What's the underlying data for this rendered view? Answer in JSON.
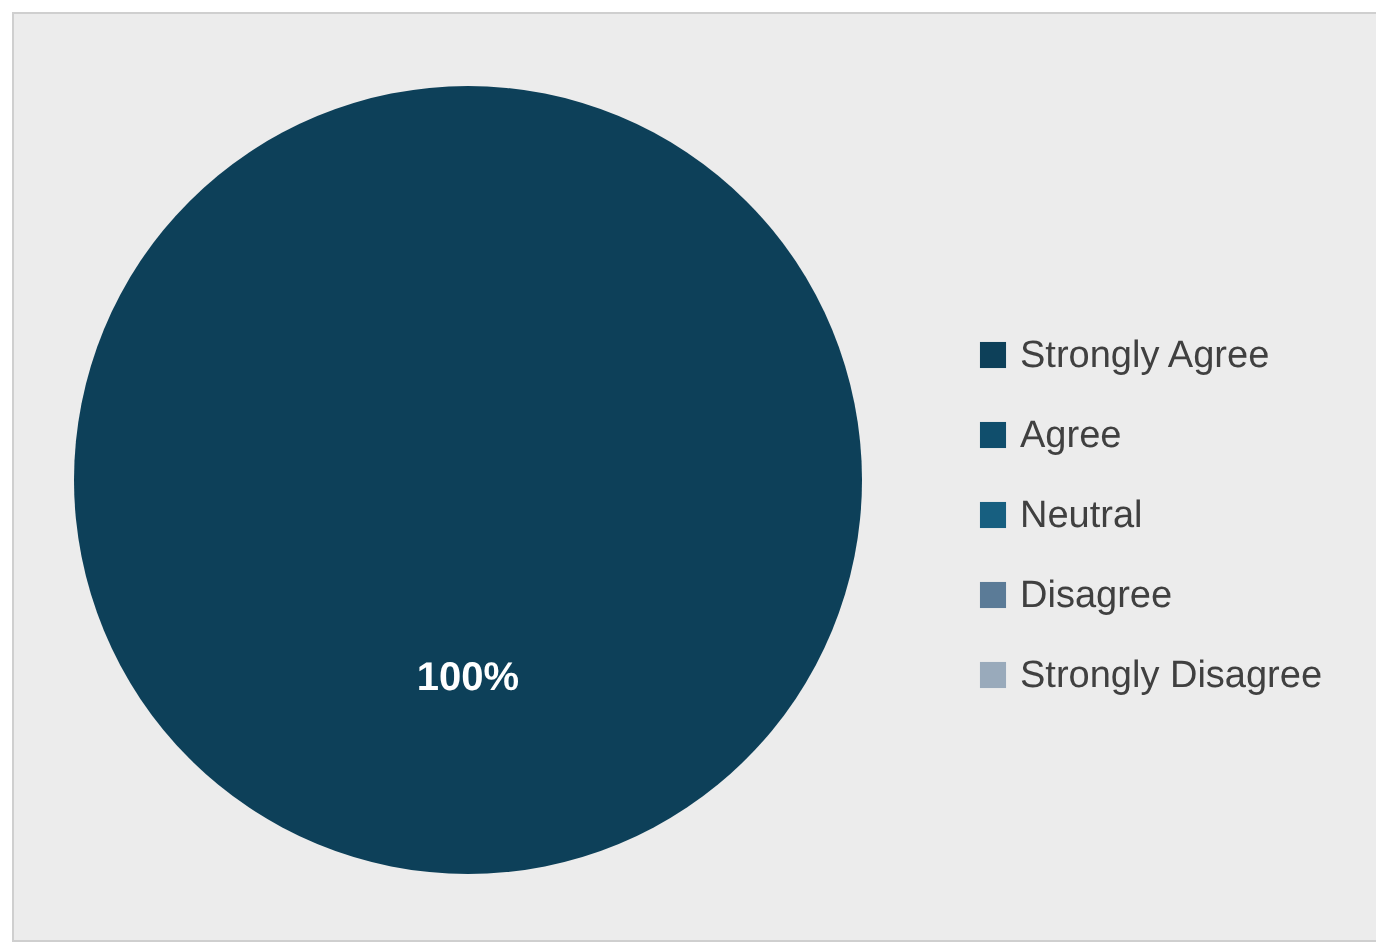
{
  "chart_data": {
    "type": "pie",
    "categories": [
      "Strongly Agree",
      "Agree",
      "Neutral",
      "Disagree",
      "Strongly Disagree"
    ],
    "values": [
      100,
      0,
      0,
      0,
      0
    ],
    "colors": [
      "#0d4059",
      "#104e6c",
      "#175f80",
      "#5b7b97",
      "#99aabb"
    ],
    "value_labels": [
      "100%",
      null,
      null,
      null,
      null
    ],
    "legend": "right"
  }
}
